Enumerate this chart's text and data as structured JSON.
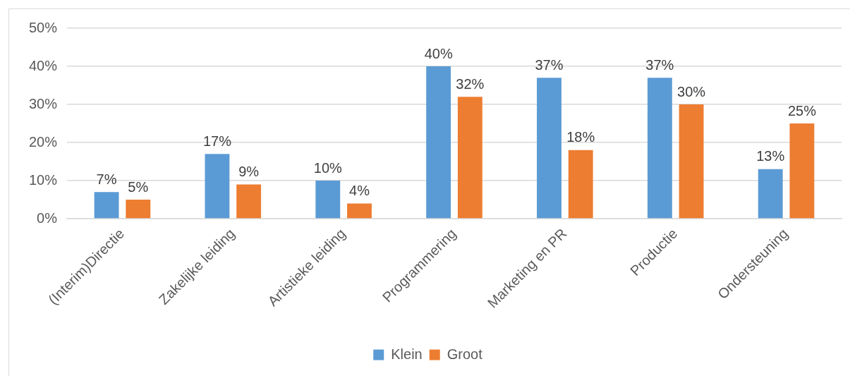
{
  "chart_data": {
    "type": "bar",
    "categories": [
      "(Interim)Directie",
      "Zakelijke leiding",
      "Artistieke leiding",
      "Programmering",
      "Marketing en PR",
      "Productie",
      "Ondersteuning"
    ],
    "series": [
      {
        "name": "Klein",
        "color": "#5b9bd5",
        "values": [
          7,
          17,
          10,
          40,
          37,
          37,
          13
        ],
        "value_labels": [
          "7%",
          "17%",
          "10%",
          "40%",
          "37%",
          "37%",
          "13%"
        ]
      },
      {
        "name": "Groot",
        "color": "#ed7d31",
        "values": [
          5,
          9,
          4,
          32,
          18,
          30,
          25
        ],
        "value_labels": [
          "5%",
          "9%",
          "4%",
          "32%",
          "18%",
          "30%",
          "25%"
        ]
      }
    ],
    "ylim": [
      0,
      50
    ],
    "yticks": [
      {
        "value": 0,
        "label": "0%"
      },
      {
        "value": 10,
        "label": "10%"
      },
      {
        "value": 20,
        "label": "20%"
      },
      {
        "value": 30,
        "label": "30%"
      },
      {
        "value": 40,
        "label": "40%"
      },
      {
        "value": 50,
        "label": "50%"
      }
    ],
    "grid": "y",
    "legend": "bottom"
  }
}
